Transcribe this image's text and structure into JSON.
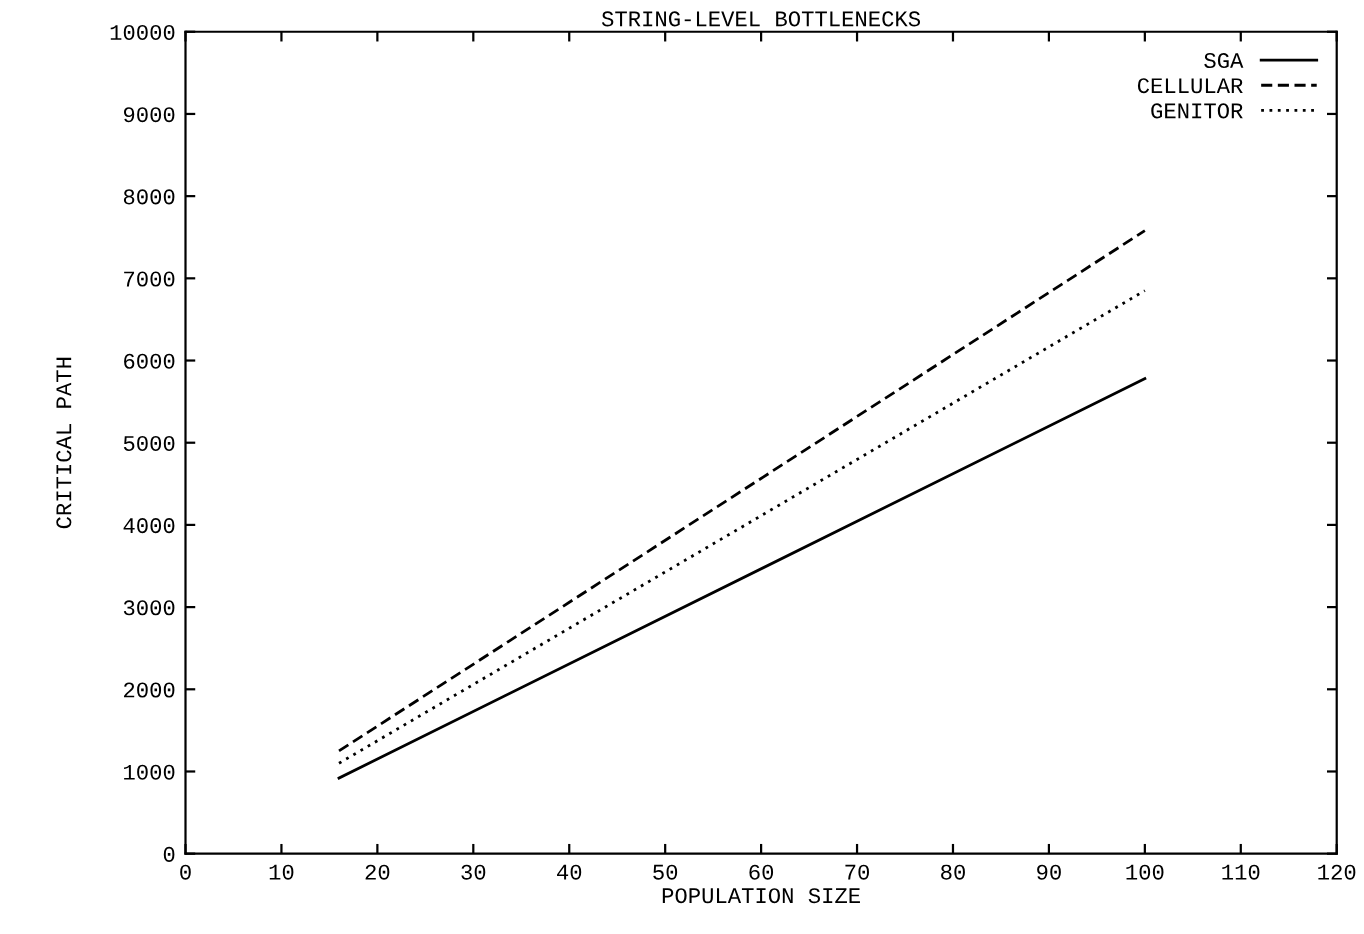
{
  "chart_data": {
    "type": "line",
    "title": "STRING-LEVEL BOTTLENECKS",
    "xlabel": "POPULATION SIZE",
    "ylabel": "CRITICAL PATH",
    "x": [
      16,
      100
    ],
    "series": [
      {
        "name": "SGA",
        "color": "#000000",
        "line_style": "solid",
        "values": [
          920,
          5780
        ]
      },
      {
        "name": "CELLULAR",
        "color": "#000000",
        "line_style": "dashed",
        "values": [
          1250,
          7580
        ]
      },
      {
        "name": "GENITOR",
        "color": "#000000",
        "line_style": "dotted",
        "values": [
          1100,
          6850
        ]
      }
    ],
    "xlim": [
      0,
      120
    ],
    "xticks": [
      0,
      10,
      20,
      30,
      40,
      50,
      60,
      70,
      80,
      90,
      100,
      110,
      120
    ],
    "ylim": [
      0,
      10000
    ],
    "yticks": [
      0,
      1000,
      2000,
      3000,
      4000,
      5000,
      6000,
      7000,
      8000,
      9000,
      10000
    ],
    "legend": "top right",
    "grid": false
  }
}
